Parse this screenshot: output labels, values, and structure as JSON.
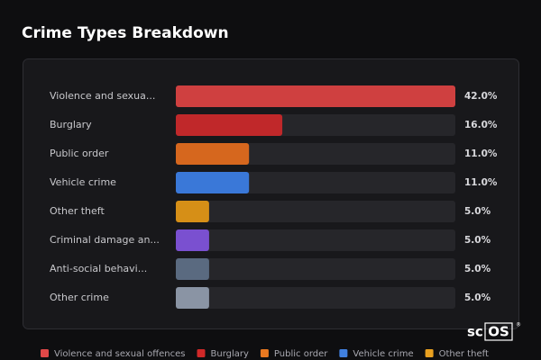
{
  "chart_data": {
    "type": "bar",
    "orientation": "horizontal",
    "title": "Crime Types Breakdown",
    "categories": [
      "Violence and sexua...",
      "Burglary",
      "Public order",
      "Vehicle crime",
      "Other theft",
      "Criminal damage an...",
      "Anti-social behavi...",
      "Other crime"
    ],
    "values": [
      42,
      16,
      11,
      11,
      5,
      5,
      5,
      5
    ],
    "value_labels": [
      "42.0%",
      "16.0%",
      "11.0%",
      "11.0%",
      "5.0%",
      "5.0%",
      "5.0%",
      "5.0%"
    ],
    "colors": [
      "#cf4040",
      "#c0282a",
      "#d6671e",
      "#3a78d8",
      "#d68f17",
      "#7a50d0",
      "#5a6a80",
      "#8a94a4"
    ],
    "legend": [
      {
        "name": "Violence and sexual offences",
        "color": "#e04848"
      },
      {
        "name": "Burglary",
        "color": "#d02828"
      },
      {
        "name": "Public order",
        "color": "#e87820"
      },
      {
        "name": "Vehicle crime",
        "color": "#4080e0"
      },
      {
        "name": "Other theft",
        "color": "#e8a020"
      }
    ]
  },
  "brand": {
    "prefix": "sc",
    "boxed": "OS",
    "mark": "®"
  }
}
